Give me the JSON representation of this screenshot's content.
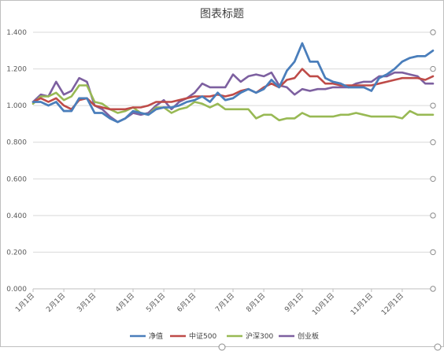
{
  "chart_data": {
    "type": "line",
    "title": "图表标题",
    "xlabel": "",
    "ylabel": "",
    "ylim": [
      0,
      1.4
    ],
    "yticks": [
      "0.000",
      "0.200",
      "0.400",
      "0.600",
      "0.800",
      "1.000",
      "1.200",
      "1.400"
    ],
    "ytick_values": [
      0,
      0.2,
      0.4,
      0.6,
      0.8,
      1.0,
      1.2,
      1.4
    ],
    "x_labels": [
      "1月1日",
      "2月1日",
      "3月1日",
      "4月1日",
      "5月1日",
      "6月1日",
      "7月1日",
      "8月1日",
      "9月1日",
      "10月1日",
      "11月1日",
      "12月1日"
    ],
    "x_label_index": [
      0,
      4,
      8,
      13,
      17,
      21,
      26,
      30,
      35,
      39,
      44,
      48
    ],
    "grid": true,
    "legend_position": "bottom",
    "series": [
      {
        "name": "净值",
        "color": "#4a7ebb",
        "values": [
          1.02,
          1.02,
          1.0,
          1.02,
          0.97,
          0.97,
          1.04,
          1.04,
          0.96,
          0.96,
          0.93,
          0.91,
          0.93,
          0.97,
          0.96,
          0.95,
          0.98,
          0.99,
          0.99,
          1.0,
          1.02,
          1.03,
          1.05,
          1.02,
          1.07,
          1.03,
          1.04,
          1.07,
          1.09,
          1.07,
          1.09,
          1.14,
          1.1,
          1.19,
          1.24,
          1.34,
          1.24,
          1.24,
          1.15,
          1.13,
          1.12,
          1.1,
          1.1,
          1.1,
          1.08,
          1.15,
          1.17,
          1.2,
          1.24,
          1.26,
          1.27,
          1.27,
          1.3
        ]
      },
      {
        "name": "中证500",
        "color": "#be4b48",
        "values": [
          1.02,
          1.04,
          1.02,
          1.04,
          1.0,
          0.98,
          1.03,
          1.04,
          1.0,
          0.99,
          0.98,
          0.98,
          0.98,
          0.99,
          0.99,
          1.0,
          1.02,
          1.02,
          1.02,
          1.03,
          1.04,
          1.05,
          1.05,
          1.05,
          1.06,
          1.05,
          1.06,
          1.08,
          1.09,
          1.07,
          1.1,
          1.12,
          1.1,
          1.14,
          1.15,
          1.2,
          1.16,
          1.16,
          1.12,
          1.12,
          1.11,
          1.11,
          1.11,
          1.11,
          1.11,
          1.12,
          1.13,
          1.14,
          1.15,
          1.15,
          1.15,
          1.14,
          1.16
        ]
      },
      {
        "name": "沪深300",
        "color": "#98b954",
        "values": [
          1.01,
          1.05,
          1.05,
          1.07,
          1.03,
          1.05,
          1.11,
          1.11,
          1.02,
          1.01,
          0.98,
          0.96,
          0.97,
          0.99,
          0.96,
          0.95,
          0.99,
          0.99,
          0.96,
          0.98,
          0.99,
          1.02,
          1.01,
          0.99,
          1.01,
          0.98,
          0.98,
          0.98,
          0.98,
          0.93,
          0.95,
          0.95,
          0.92,
          0.93,
          0.93,
          0.96,
          0.94,
          0.94,
          0.94,
          0.94,
          0.95,
          0.95,
          0.96,
          0.95,
          0.94,
          0.94,
          0.94,
          0.94,
          0.93,
          0.97,
          0.95,
          0.95,
          0.95
        ]
      },
      {
        "name": "创业板",
        "color": "#7d60a0",
        "values": [
          1.02,
          1.06,
          1.05,
          1.13,
          1.06,
          1.08,
          1.15,
          1.13,
          1.0,
          0.98,
          0.94,
          0.91,
          0.93,
          0.96,
          0.95,
          0.96,
          1.0,
          1.03,
          0.98,
          1.02,
          1.04,
          1.07,
          1.12,
          1.1,
          1.1,
          1.1,
          1.17,
          1.13,
          1.16,
          1.17,
          1.16,
          1.18,
          1.11,
          1.1,
          1.06,
          1.09,
          1.08,
          1.09,
          1.09,
          1.1,
          1.1,
          1.1,
          1.12,
          1.13,
          1.13,
          1.16,
          1.16,
          1.18,
          1.18,
          1.17,
          1.16,
          1.12,
          1.12
        ]
      }
    ]
  }
}
